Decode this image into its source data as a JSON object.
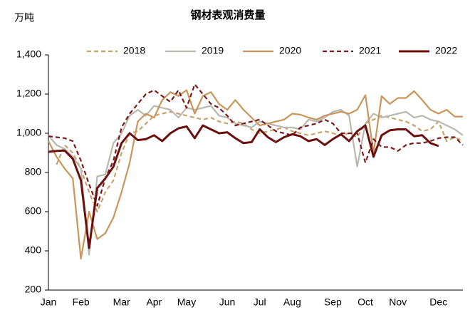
{
  "chart_data": {
    "type": "line",
    "title": "钢材表观消费量",
    "y_axis_label": "万吨",
    "categories": [
      "Jan",
      null,
      null,
      null,
      "Feb",
      null,
      null,
      null,
      null,
      "Mar",
      null,
      null,
      null,
      "Apr",
      null,
      null,
      null,
      "May",
      null,
      null,
      null,
      null,
      "Jun",
      null,
      null,
      null,
      "Jul",
      null,
      null,
      null,
      "Aug",
      null,
      null,
      null,
      null,
      "Sep",
      null,
      null,
      null,
      "Oct",
      null,
      null,
      null,
      "Nov",
      null,
      null,
      null,
      null,
      "Dec",
      null,
      null,
      null
    ],
    "series": [
      {
        "name": "2018",
        "color": "#c9a36a",
        "dash": true,
        "values": [
          null,
          840,
          940,
          900,
          820,
          700,
          600,
          700,
          760,
          900,
          1000,
          1010,
          1050,
          1090,
          1100,
          1110,
          1100,
          1090,
          1080,
          1070,
          1080,
          1060,
          1050,
          1060,
          1050,
          1020,
          1000,
          1010,
          1020,
          1030,
          1010,
          1000,
          990,
          1000,
          1010,
          1000,
          990,
          1000,
          980,
          1050,
          1070,
          1090,
          1080,
          1070,
          1060,
          1040,
          1010,
          1020,
          1060,
          960,
          980,
          960
        ]
      },
      {
        "name": "2019",
        "color": "#b9b9b1",
        "dash": false,
        "values": [
          990,
          940,
          920,
          880,
          820,
          380,
          780,
          790,
          950,
          1000,
          1090,
          1120,
          1090,
          1140,
          1130,
          1120,
          1080,
          1130,
          1120,
          1130,
          1140,
          1090,
          1080,
          1050,
          1040,
          1030,
          1060,
          1050,
          1040,
          1030,
          1030,
          1020,
          1070,
          1060,
          1080,
          1110,
          1120,
          1090,
          830,
          1050,
          1100,
          1080,
          1090,
          1100,
          1110,
          1080,
          1090,
          1070,
          1060,
          1040,
          1020,
          990
        ]
      },
      {
        "name": "2020",
        "color": "#c8955a",
        "dash": false,
        "values": [
          960,
          880,
          820,
          770,
          360,
          600,
          460,
          490,
          570,
          700,
          850,
          1060,
          1100,
          1080,
          1170,
          1210,
          1190,
          1220,
          1100,
          1190,
          1210,
          1150,
          1120,
          1170,
          1120,
          1080,
          1040,
          1050,
          1060,
          1070,
          1100,
          1095,
          1080,
          1070,
          1090,
          1100,
          1110,
          1100,
          1120,
          1195,
          900,
          1190,
          1150,
          1180,
          1180,
          1215,
          1170,
          1120,
          1100,
          1120,
          1085,
          1085
        ]
      },
      {
        "name": "2021",
        "color": "#7a1a1a",
        "dash": true,
        "values": [
          985,
          980,
          975,
          960,
          860,
          740,
          630,
          770,
          860,
          1030,
          1100,
          1150,
          1200,
          1220,
          1190,
          1160,
          1220,
          1130,
          1250,
          1200,
          1150,
          1130,
          1090,
          1040,
          1050,
          1060,
          1070,
          1040,
          1010,
          1000,
          990,
          1030,
          1040,
          1050,
          1070,
          1050,
          1000,
          1000,
          1000,
          850,
          970,
          930,
          930,
          910,
          940,
          950,
          950,
          960,
          975,
          980,
          980,
          940
        ]
      },
      {
        "name": "2022",
        "color": "#6b0f0f",
        "dash": false,
        "values": [
          905,
          910,
          912,
          870,
          760,
          415,
          720,
          770,
          830,
          950,
          1000,
          965,
          970,
          990,
          960,
          1000,
          1025,
          1035,
          975,
          1040,
          1020,
          1000,
          1005,
          975,
          950,
          955,
          1020,
          980,
          955,
          980,
          995,
          985,
          960,
          970,
          940,
          970,
          995,
          960,
          1010,
          1040,
          880,
          990,
          1015,
          1020,
          1020,
          985,
          990,
          950,
          935,
          null,
          null,
          null
        ]
      }
    ],
    "ylim": [
      200,
      1400
    ],
    "yticks": [
      200,
      400,
      600,
      800,
      {
        "value": 1000,
        "label": "1,000"
      },
      {
        "value": 1200,
        "label": "1,200"
      },
      {
        "value": 1400,
        "label": "1,400"
      }
    ],
    "grid": false,
    "legend": "top"
  }
}
